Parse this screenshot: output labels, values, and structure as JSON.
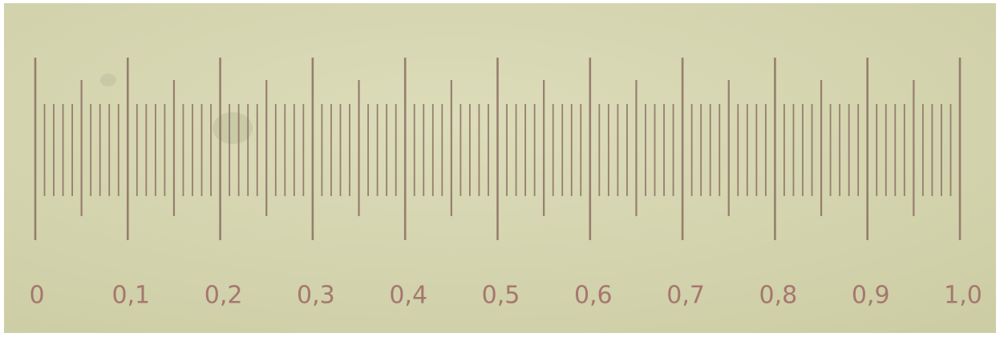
{
  "scale": {
    "labels": [
      "0",
      "0,1",
      "0,2",
      "0,3",
      "0,4",
      "0,5",
      "0,6",
      "0,7",
      "0,8",
      "0,9",
      "1,0"
    ]
  }
}
